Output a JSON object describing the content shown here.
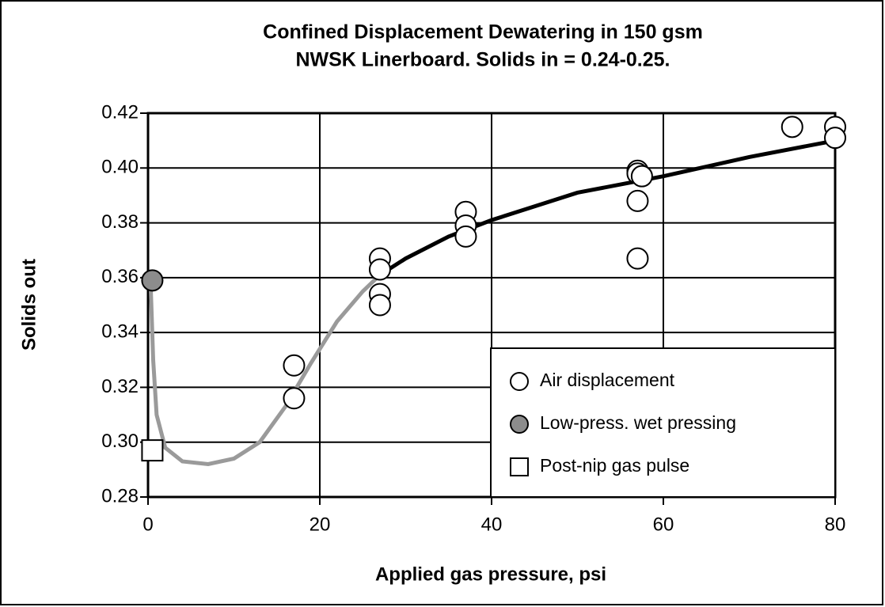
{
  "chart_data": {
    "type": "scatter",
    "title": [
      "Confined Displacement Dewatering in 150 gsm",
      "NWSK Linerboard. Solids in = 0.24-0.25."
    ],
    "x_label": "Applied gas pressure, psi",
    "y_label": "Solids out",
    "xlim": [
      0,
      80
    ],
    "xticks": [
      0,
      20,
      40,
      60,
      80
    ],
    "ylim": [
      0.28,
      0.42
    ],
    "yticks": [
      {
        "value": 0.28,
        "label": "0.28"
      },
      {
        "value": 0.3,
        "label": "0.30"
      },
      {
        "value": 0.32,
        "label": "0.32"
      },
      {
        "value": 0.34,
        "label": "0.34"
      },
      {
        "value": 0.36,
        "label": "0.36"
      },
      {
        "value": 0.38,
        "label": "0.38"
      },
      {
        "value": 0.4,
        "label": "0.40"
      },
      {
        "value": 0.42,
        "label": "0.42"
      }
    ],
    "grid": true,
    "legend": "lower right",
    "series": [
      {
        "name": "Air displacement",
        "marker": "circle",
        "color": "#ffffff",
        "x": [
          17,
          17,
          27,
          27,
          27,
          27,
          37,
          37,
          37,
          57,
          57,
          57,
          57,
          57.5,
          75,
          80,
          80
        ],
        "y": [
          0.328,
          0.316,
          0.367,
          0.363,
          0.354,
          0.35,
          0.384,
          0.379,
          0.375,
          0.399,
          0.398,
          0.388,
          0.367,
          0.397,
          0.415,
          0.415,
          0.411
        ]
      },
      {
        "name": "Low-press. wet pressing",
        "marker": "circle",
        "color": "#8c8c8c",
        "x": [
          0.5
        ],
        "y": [
          0.359
        ]
      },
      {
        "name": "Post-nip gas pulse",
        "marker": "square",
        "color": "#ffffff",
        "x": [
          0.5
        ],
        "y": [
          0.297
        ]
      }
    ],
    "curves": [
      {
        "color": "#9a9a9a",
        "width": 5,
        "x": [
          0.3,
          0.6,
          1,
          2,
          4,
          7,
          10,
          13,
          16,
          19,
          22,
          25,
          27
        ],
        "y": [
          0.358,
          0.33,
          0.31,
          0.298,
          0.293,
          0.292,
          0.294,
          0.3,
          0.313,
          0.329,
          0.344,
          0.355,
          0.361
        ]
      },
      {
        "color": "#000000",
        "width": 5,
        "x": [
          27,
          30,
          35,
          40,
          50,
          60,
          70,
          80
        ],
        "y": [
          0.361,
          0.367,
          0.375,
          0.381,
          0.391,
          0.397,
          0.404,
          0.41
        ]
      }
    ]
  }
}
